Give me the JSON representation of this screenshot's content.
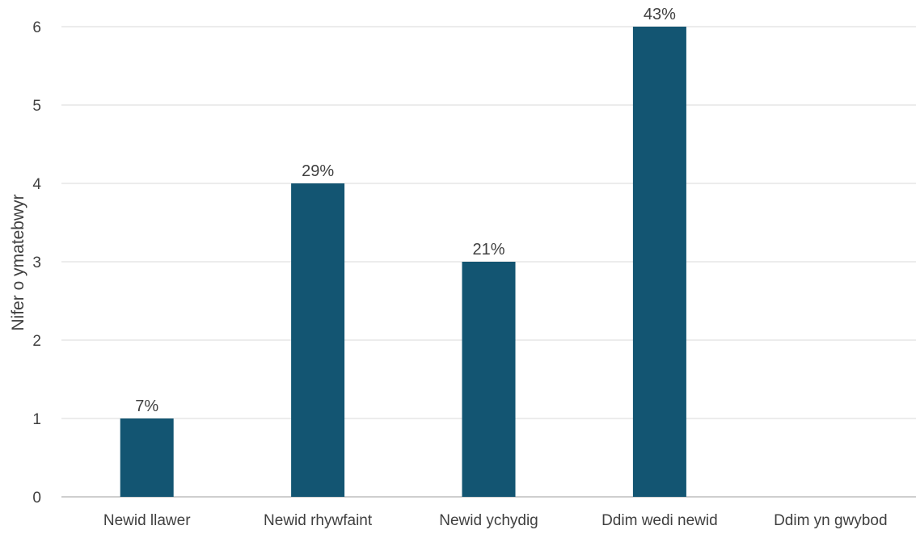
{
  "chart_data": {
    "type": "bar",
    "title": "",
    "xlabel": "",
    "ylabel": "Nifer o ymatebwyr",
    "categories": [
      "Newid llawer",
      "Newid rhywfaint",
      "Newid ychydig",
      "Ddim wedi newid",
      "Ddim yn gwybod"
    ],
    "values": [
      1,
      4,
      3,
      6,
      0
    ],
    "data_labels": [
      "7%",
      "29%",
      "21%",
      "43%",
      ""
    ],
    "ylim": [
      0,
      6
    ],
    "yticks": [
      0,
      1,
      2,
      3,
      4,
      5,
      6
    ],
    "grid": true,
    "legend": "none",
    "colors": {
      "bar": "#135572",
      "grid": "#d9d9d9",
      "axis": "#bfbfbf",
      "text": "#404040"
    }
  }
}
